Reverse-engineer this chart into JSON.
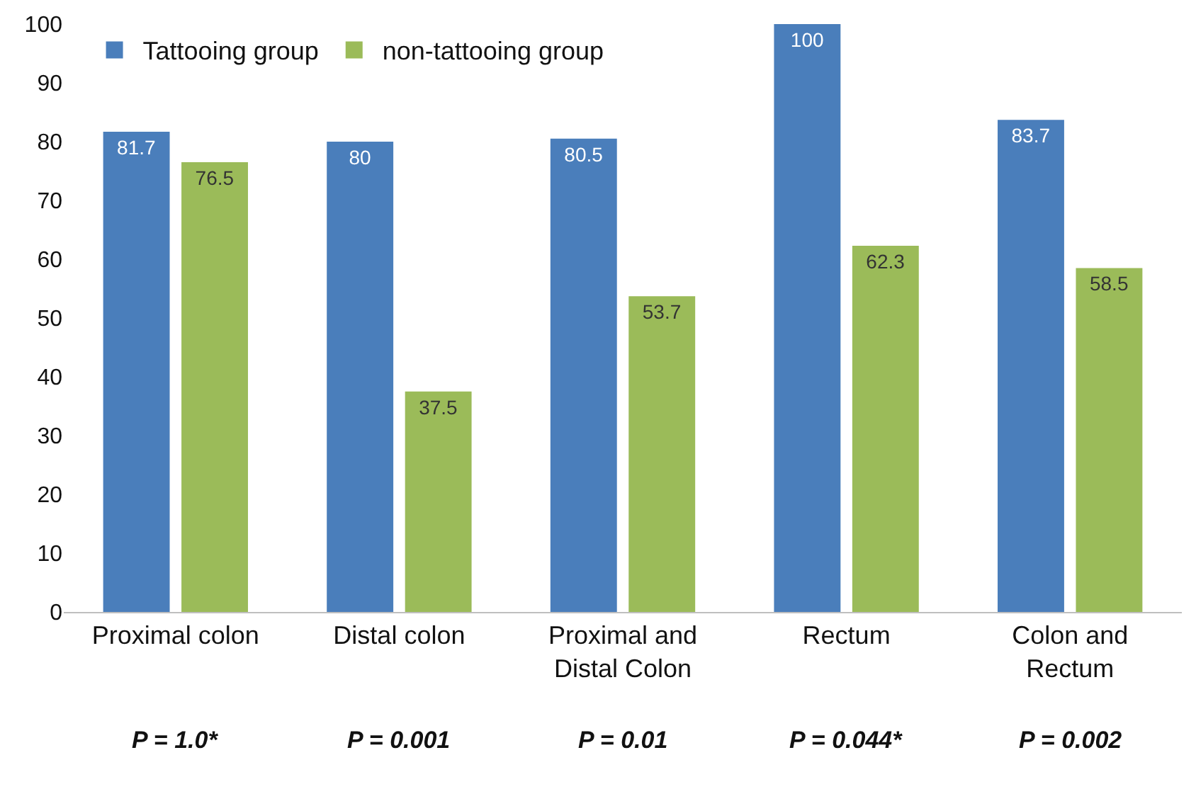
{
  "chart_data": {
    "type": "bar",
    "categories": [
      "Proximal colon",
      "Distal colon",
      "Proximal and\nDistal Colon",
      "Rectum",
      "Colon and\nRectum"
    ],
    "series": [
      {
        "name": "Tattooing group",
        "color": "#4a7ebb",
        "values": [
          81.7,
          80,
          80.5,
          100,
          83.7
        ]
      },
      {
        "name": "non-tattooing group",
        "color": "#9bbb59",
        "values": [
          76.5,
          37.5,
          53.7,
          62.3,
          58.5
        ]
      }
    ],
    "ylim": [
      0,
      100
    ],
    "yticks": [
      0,
      10,
      20,
      30,
      40,
      50,
      60,
      70,
      80,
      90,
      100
    ],
    "data_labels": true,
    "legend": "top left",
    "annotations": [
      "P = 1.0*",
      "P = 0.001",
      "P = 0.01",
      "P = 0.044*",
      "P = 0.002"
    ]
  }
}
